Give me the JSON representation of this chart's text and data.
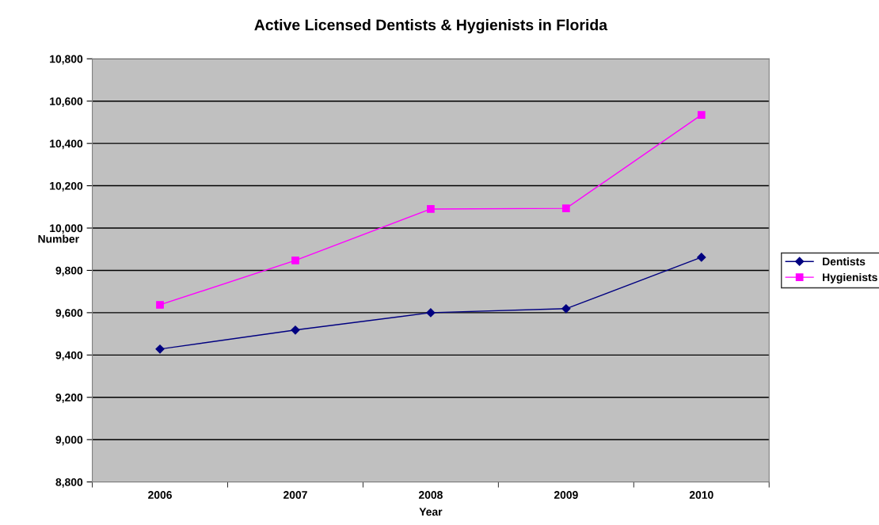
{
  "chart_data": {
    "type": "line",
    "title": "Active Licensed Dentists & Hygienists in Florida",
    "xlabel": "Year",
    "ylabel": "Number",
    "categories": [
      "2006",
      "2007",
      "2008",
      "2009",
      "2010"
    ],
    "series": [
      {
        "name": "Dentists",
        "color": "#000080",
        "values": [
          9428,
          9518,
          9600,
          9619,
          9862
        ],
        "marker": "diamond"
      },
      {
        "name": "Hygienists",
        "color": "#ff00ff",
        "values": [
          9637,
          9847,
          10090,
          10093,
          10535
        ],
        "marker": "square"
      }
    ],
    "ylim": [
      8800,
      10800
    ],
    "yticks": [
      {
        "value": 8800,
        "label": "8,800"
      },
      {
        "value": 9000,
        "label": "9,000"
      },
      {
        "value": 9200,
        "label": "9,200"
      },
      {
        "value": 9400,
        "label": "9,400"
      },
      {
        "value": 9600,
        "label": "9,600"
      },
      {
        "value": 9800,
        "label": "9,800"
      },
      {
        "value": 10000,
        "label": "10,000"
      },
      {
        "value": 10200,
        "label": "10,200"
      },
      {
        "value": 10400,
        "label": "10,400"
      },
      {
        "value": 10600,
        "label": "10,600"
      },
      {
        "value": 10800,
        "label": "10,800"
      }
    ],
    "grid": "y",
    "legend": "right",
    "line_style": "solid"
  }
}
